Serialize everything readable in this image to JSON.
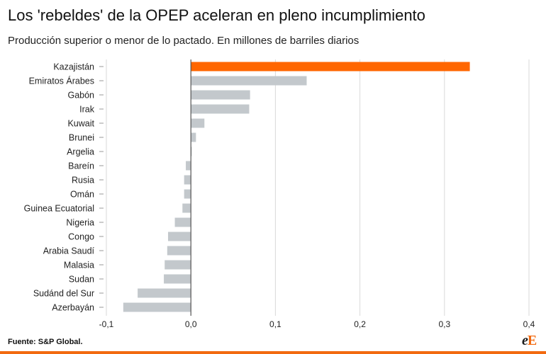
{
  "header": {
    "title": "Los 'rebeldes' de la OPEP aceleran en pleno incumplimiento",
    "subtitle": "Producción superior o menor de lo pactado. En millones de barriles diarios"
  },
  "footer": {
    "source": "Fuente: S&P Global.",
    "logo_part1": "e",
    "logo_part2": "E"
  },
  "colors": {
    "highlight": "#ff6600",
    "bar": "#c3c8cc",
    "grid": "#d9d9d9",
    "axis": "#555555",
    "accent_line": "#f26a10"
  },
  "chart_data": {
    "type": "bar",
    "orientation": "horizontal",
    "categories": [
      "Kazajistán",
      "Emiratos Árabes",
      "Gabón",
      "Irak",
      "Kuwait",
      "Brunei",
      "Argelia",
      "Bareín",
      "Rusia",
      "Omán",
      "Guinea Ecuatorial",
      "Nigeria",
      "Congo",
      "Arabia Saudí",
      "Malasia",
      "Sudan",
      "Sudánd del Sur",
      "Azerbayán"
    ],
    "values": [
      0.33,
      0.137,
      0.07,
      0.069,
      0.016,
      0.006,
      0.001,
      -0.006,
      -0.008,
      -0.008,
      -0.01,
      -0.019,
      -0.027,
      -0.028,
      -0.031,
      -0.032,
      -0.063,
      -0.08
    ],
    "highlight_index": 0,
    "xlim": [
      -0.1,
      0.4
    ],
    "xticks": [
      -0.1,
      0.0,
      0.1,
      0.2,
      0.3,
      0.4
    ],
    "xtick_labels": [
      "-0,1",
      "0,0",
      "0,1",
      "0,2",
      "0,3",
      "0,4"
    ],
    "grid": true,
    "legend": "none"
  }
}
